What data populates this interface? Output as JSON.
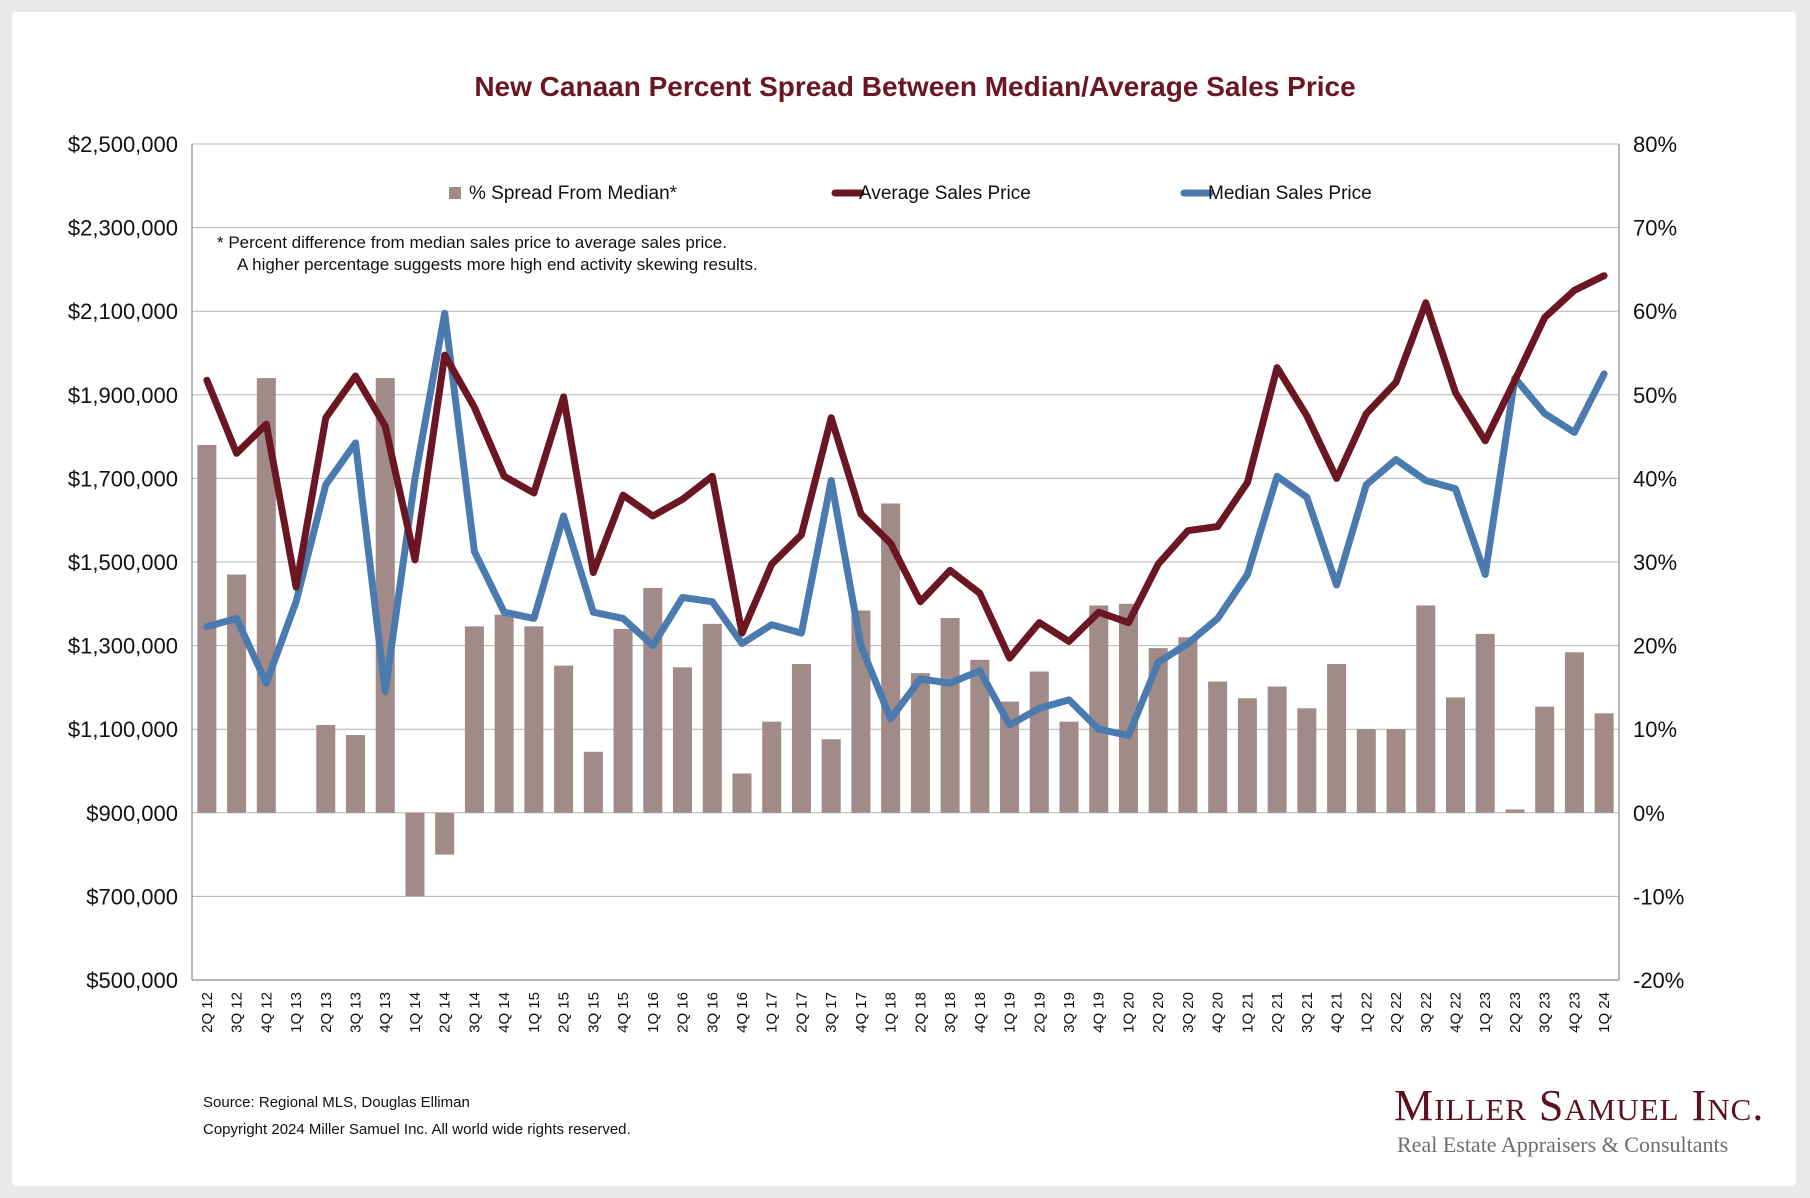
{
  "chart_data": {
    "type": "bar+line",
    "title": "New Canaan Percent Spread Between Median/Average Sales Price",
    "categories": [
      "2Q 12",
      "3Q 12",
      "4Q 12",
      "1Q 13",
      "2Q 13",
      "3Q 13",
      "4Q 13",
      "1Q 14",
      "2Q 14",
      "3Q 14",
      "4Q 14",
      "1Q 15",
      "2Q 15",
      "3Q 15",
      "4Q 15",
      "1Q 16",
      "2Q 16",
      "3Q 16",
      "4Q 16",
      "1Q 17",
      "2Q 17",
      "3Q 17",
      "4Q 17",
      "1Q 18",
      "2Q 18",
      "3Q 18",
      "4Q 18",
      "1Q 19",
      "2Q 19",
      "3Q 19",
      "4Q 19",
      "1Q 20",
      "2Q 20",
      "3Q 20",
      "4Q 20",
      "1Q 21",
      "2Q 21",
      "3Q 21",
      "4Q 21",
      "1Q 22",
      "2Q 22",
      "3Q 22",
      "4Q 22",
      "1Q 23",
      "2Q 23",
      "3Q 23",
      "4Q 23",
      "1Q 24"
    ],
    "series": [
      {
        "name": "% Spread From Median*",
        "kind": "bar",
        "axis": "right",
        "color": "#a08b89",
        "values": [
          44,
          28.5,
          52,
          0,
          10.5,
          9.3,
          52,
          -10,
          -5,
          22.3,
          23.7,
          22.3,
          17.6,
          7.3,
          22,
          26.9,
          17.4,
          22.6,
          4.7,
          10.9,
          17.8,
          8.8,
          24.2,
          37,
          16.7,
          23.3,
          18.3,
          13.3,
          16.9,
          10.9,
          24.8,
          25,
          19.7,
          21,
          15.7,
          13.7,
          15.1,
          12.5,
          17.8,
          10,
          10,
          24.8,
          13.8,
          21.4,
          0.4,
          12.7,
          19.2,
          11.9
        ]
      },
      {
        "name": "Average Sales Price",
        "kind": "line",
        "axis": "left",
        "color": "#6b1623",
        "values": [
          1935000,
          1760000,
          1830000,
          1440000,
          1845000,
          1945000,
          1825000,
          1505000,
          1995000,
          1870000,
          1705000,
          1665000,
          1895000,
          1475000,
          1660000,
          1610000,
          1650000,
          1705000,
          1330000,
          1495000,
          1565000,
          1845000,
          1615000,
          1545000,
          1405000,
          1480000,
          1425000,
          1270000,
          1355000,
          1310000,
          1380000,
          1355000,
          1495000,
          1575000,
          1585000,
          1690000,
          1965000,
          1850000,
          1700000,
          1855000,
          1930000,
          2120000,
          1905000,
          1790000,
          1935000,
          2085000,
          2150000,
          2185000
        ]
      },
      {
        "name": "Median Sales Price",
        "kind": "line",
        "axis": "left",
        "color": "#4a7aae",
        "values": [
          1345000,
          1365000,
          1210000,
          1405000,
          1685000,
          1785000,
          1190000,
          1700000,
          2095000,
          1525000,
          1380000,
          1365000,
          1610000,
          1380000,
          1365000,
          1300000,
          1415000,
          1405000,
          1305000,
          1350000,
          1330000,
          1695000,
          1300000,
          1125000,
          1220000,
          1210000,
          1240000,
          1110000,
          1150000,
          1170000,
          1100000,
          1085000,
          1260000,
          1305000,
          1365000,
          1470000,
          1705000,
          1655000,
          1445000,
          1685000,
          1745000,
          1695000,
          1675000,
          1470000,
          1940000,
          1855000,
          1810000,
          1950000
        ]
      }
    ],
    "y_left": {
      "ylim": [
        500000,
        2500000
      ],
      "ticks": [
        500000,
        700000,
        900000,
        1100000,
        1300000,
        1500000,
        1700000,
        1900000,
        2100000,
        2300000,
        2500000
      ],
      "tick_labels": [
        "$500,000",
        "$700,000",
        "$900,000",
        "$1,100,000",
        "$1,300,000",
        "$1,500,000",
        "$1,700,000",
        "$1,900,000",
        "$2,100,000",
        "$2,300,000",
        "$2,500,000"
      ]
    },
    "y_right": {
      "ylim": [
        -20,
        80
      ],
      "ticks": [
        -20,
        -10,
        0,
        10,
        20,
        30,
        40,
        50,
        60,
        70,
        80
      ],
      "tick_labels": [
        "-20%",
        "-10%",
        "0%",
        "10%",
        "20%",
        "30%",
        "40%",
        "50%",
        "60%",
        "70%",
        "80%"
      ]
    },
    "legend": [
      "% Spread From Median*",
      "Average Sales Price",
      "Median Sales Price"
    ],
    "legend_position": "top",
    "grid": true,
    "footnote_line1": "*  Percent difference from median sales price to average sales price.",
    "footnote_line2": "A higher percentage suggests more high end activity skewing results."
  },
  "footer": {
    "source": "Source: Regional MLS, Douglas Elliman",
    "copyright": "Copyright 2024 Miller Samuel Inc.  All world wide rights reserved."
  },
  "logo": {
    "name": "Miller Samuel Inc.",
    "tagline": "Real Estate Appraisers & Consultants"
  }
}
